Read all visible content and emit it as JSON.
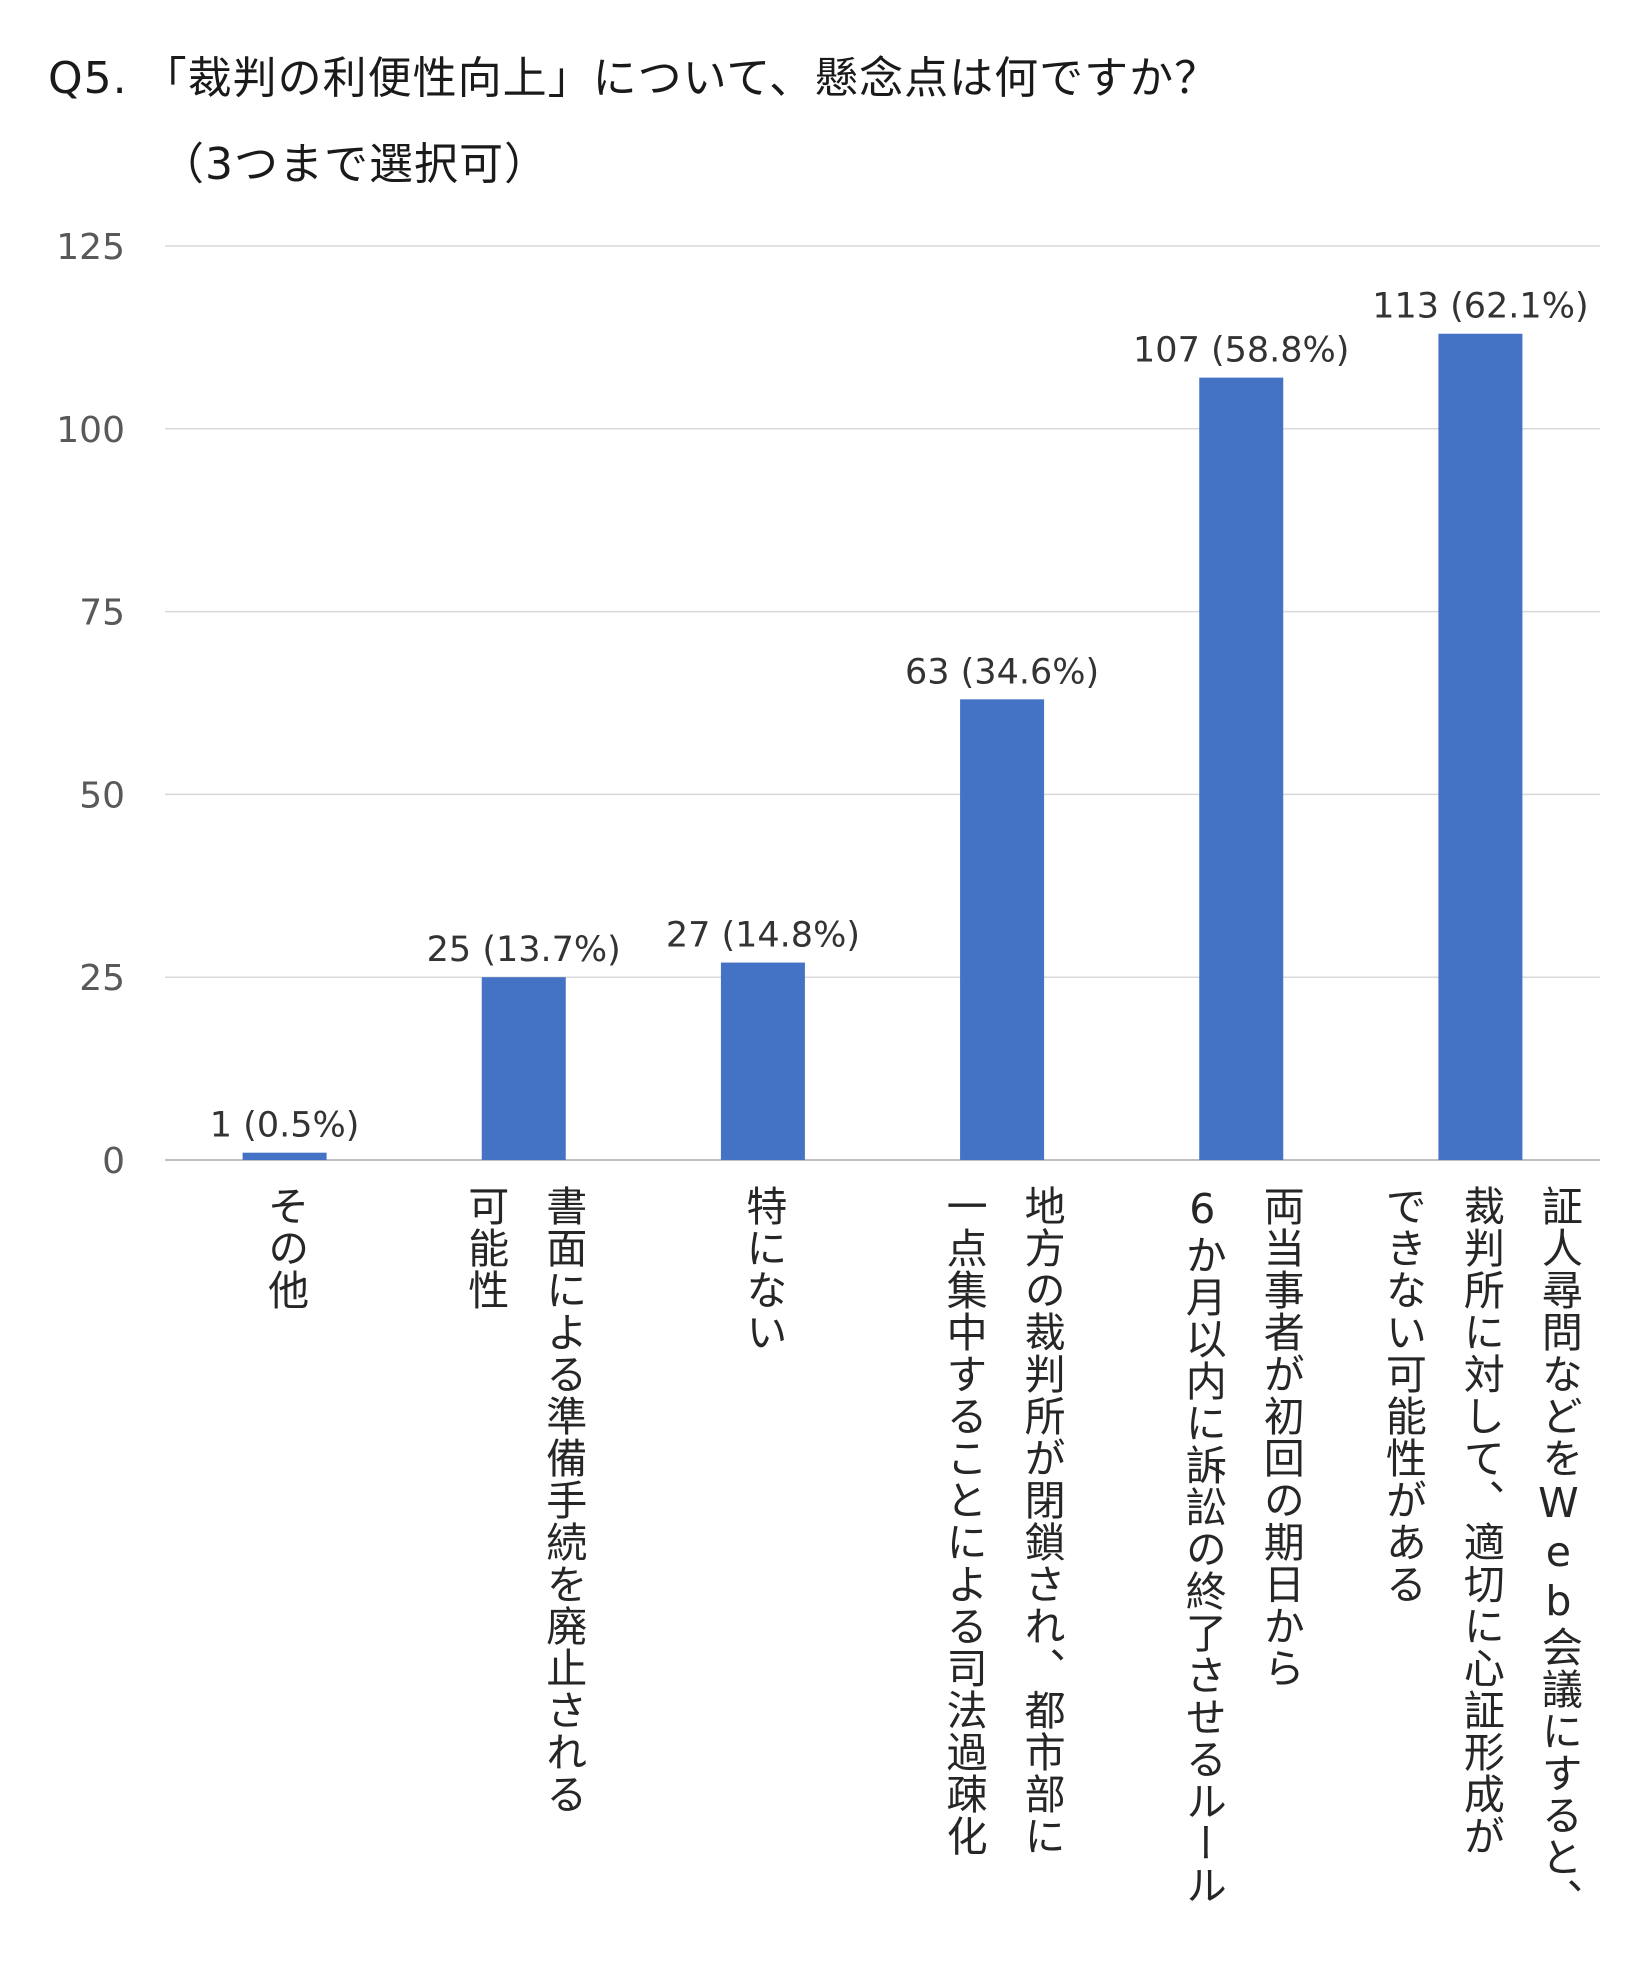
{
  "title": {
    "line1": "Q5. 「裁判の利便性向上」について、懸念点は何ですか？",
    "line2": "（3つまで選択可）"
  },
  "chart_data": {
    "type": "bar",
    "categories": [
      "その他",
      "書面による準備手続を廃止される\n可能性",
      "特にない",
      "地方の裁判所が閉鎖され、都市部に\n一点集中することによる司法過疎化",
      "両当事者が初回の期日から\n6か月以内に訴訟の終了させるルール",
      "証人尋問などをWeb会議にすると、\n裁判所に対して、適切に心証形成が\nできない可能性がある"
    ],
    "values": [
      1,
      25,
      27,
      63,
      107,
      113
    ],
    "data_labels": [
      "1 (0.5%)",
      "25 (13.7%)",
      "27 (14.8%)",
      "63 (34.6%)",
      "107 (58.8%)",
      "113 (62.1%)"
    ],
    "ylim": [
      0,
      125
    ],
    "yticks": [
      "0",
      "25",
      "50",
      "75",
      "100",
      "125"
    ],
    "grid": true,
    "bar_color": "#4472C4",
    "grid_color": "#d9d9d9"
  }
}
